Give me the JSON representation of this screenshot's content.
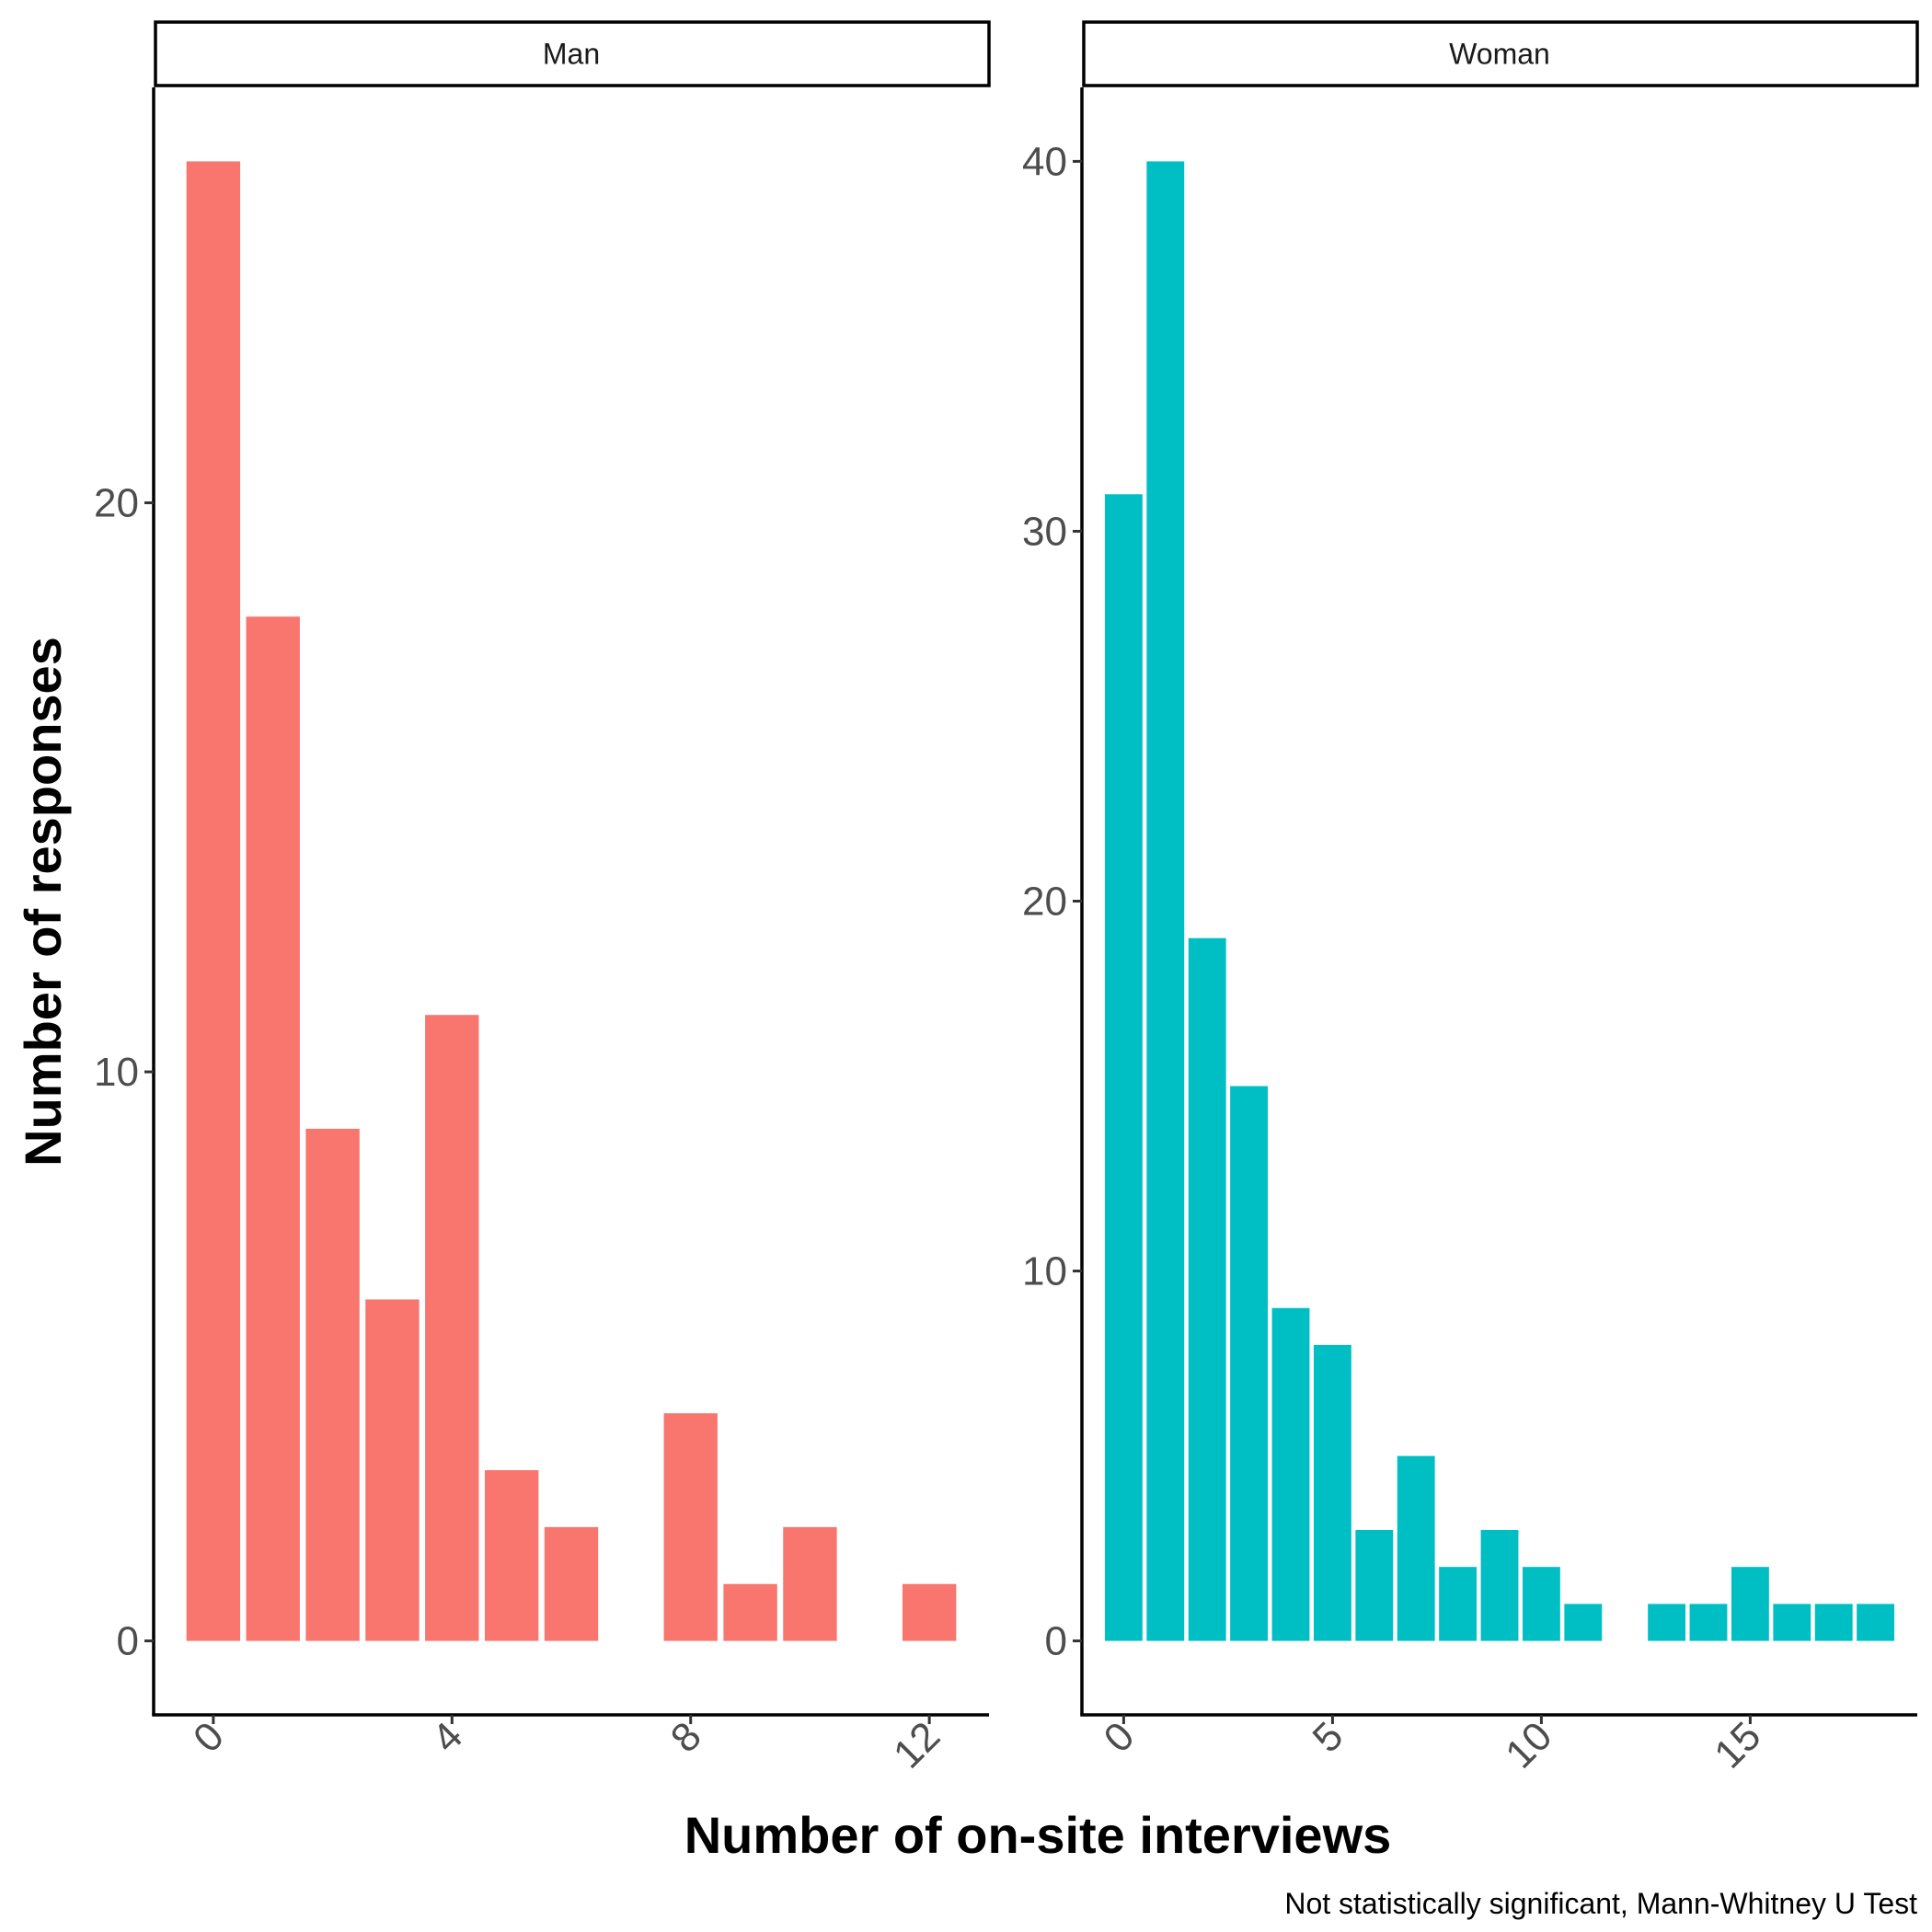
{
  "xlabel": "Number of on-site interviews",
  "ylabel": "Number of responses",
  "caption": "Not statistically significant, Mann-Whitney U Test",
  "chart_data": [
    {
      "type": "bar",
      "panel": "Man",
      "color": "#F8766D",
      "x": [
        0,
        1,
        2,
        3,
        4,
        5,
        6,
        7,
        8,
        9,
        10,
        11,
        12
      ],
      "values": [
        26,
        18,
        9,
        6,
        11,
        3,
        2,
        0,
        4,
        1,
        2,
        0,
        1
      ],
      "xlim": [
        -1,
        13
      ],
      "ylim": [
        -1.3,
        27.3
      ],
      "xticks": [
        0,
        4,
        8,
        12
      ],
      "yticks": [
        0,
        10,
        20
      ]
    },
    {
      "type": "bar",
      "panel": "Woman",
      "color": "#00BFC4",
      "x": [
        0,
        1,
        2,
        3,
        4,
        5,
        6,
        7,
        8,
        9,
        10,
        11,
        12,
        13,
        14,
        15,
        16,
        17,
        18
      ],
      "values": [
        31,
        40,
        19,
        15,
        9,
        8,
        3,
        5,
        2,
        3,
        2,
        1,
        0,
        1,
        1,
        2,
        1,
        1,
        1
      ],
      "xlim": [
        -1,
        19
      ],
      "ylim": [
        -2,
        42
      ],
      "xticks": [
        0,
        5,
        10,
        15
      ],
      "yticks": [
        0,
        10,
        20,
        30,
        40
      ]
    }
  ]
}
